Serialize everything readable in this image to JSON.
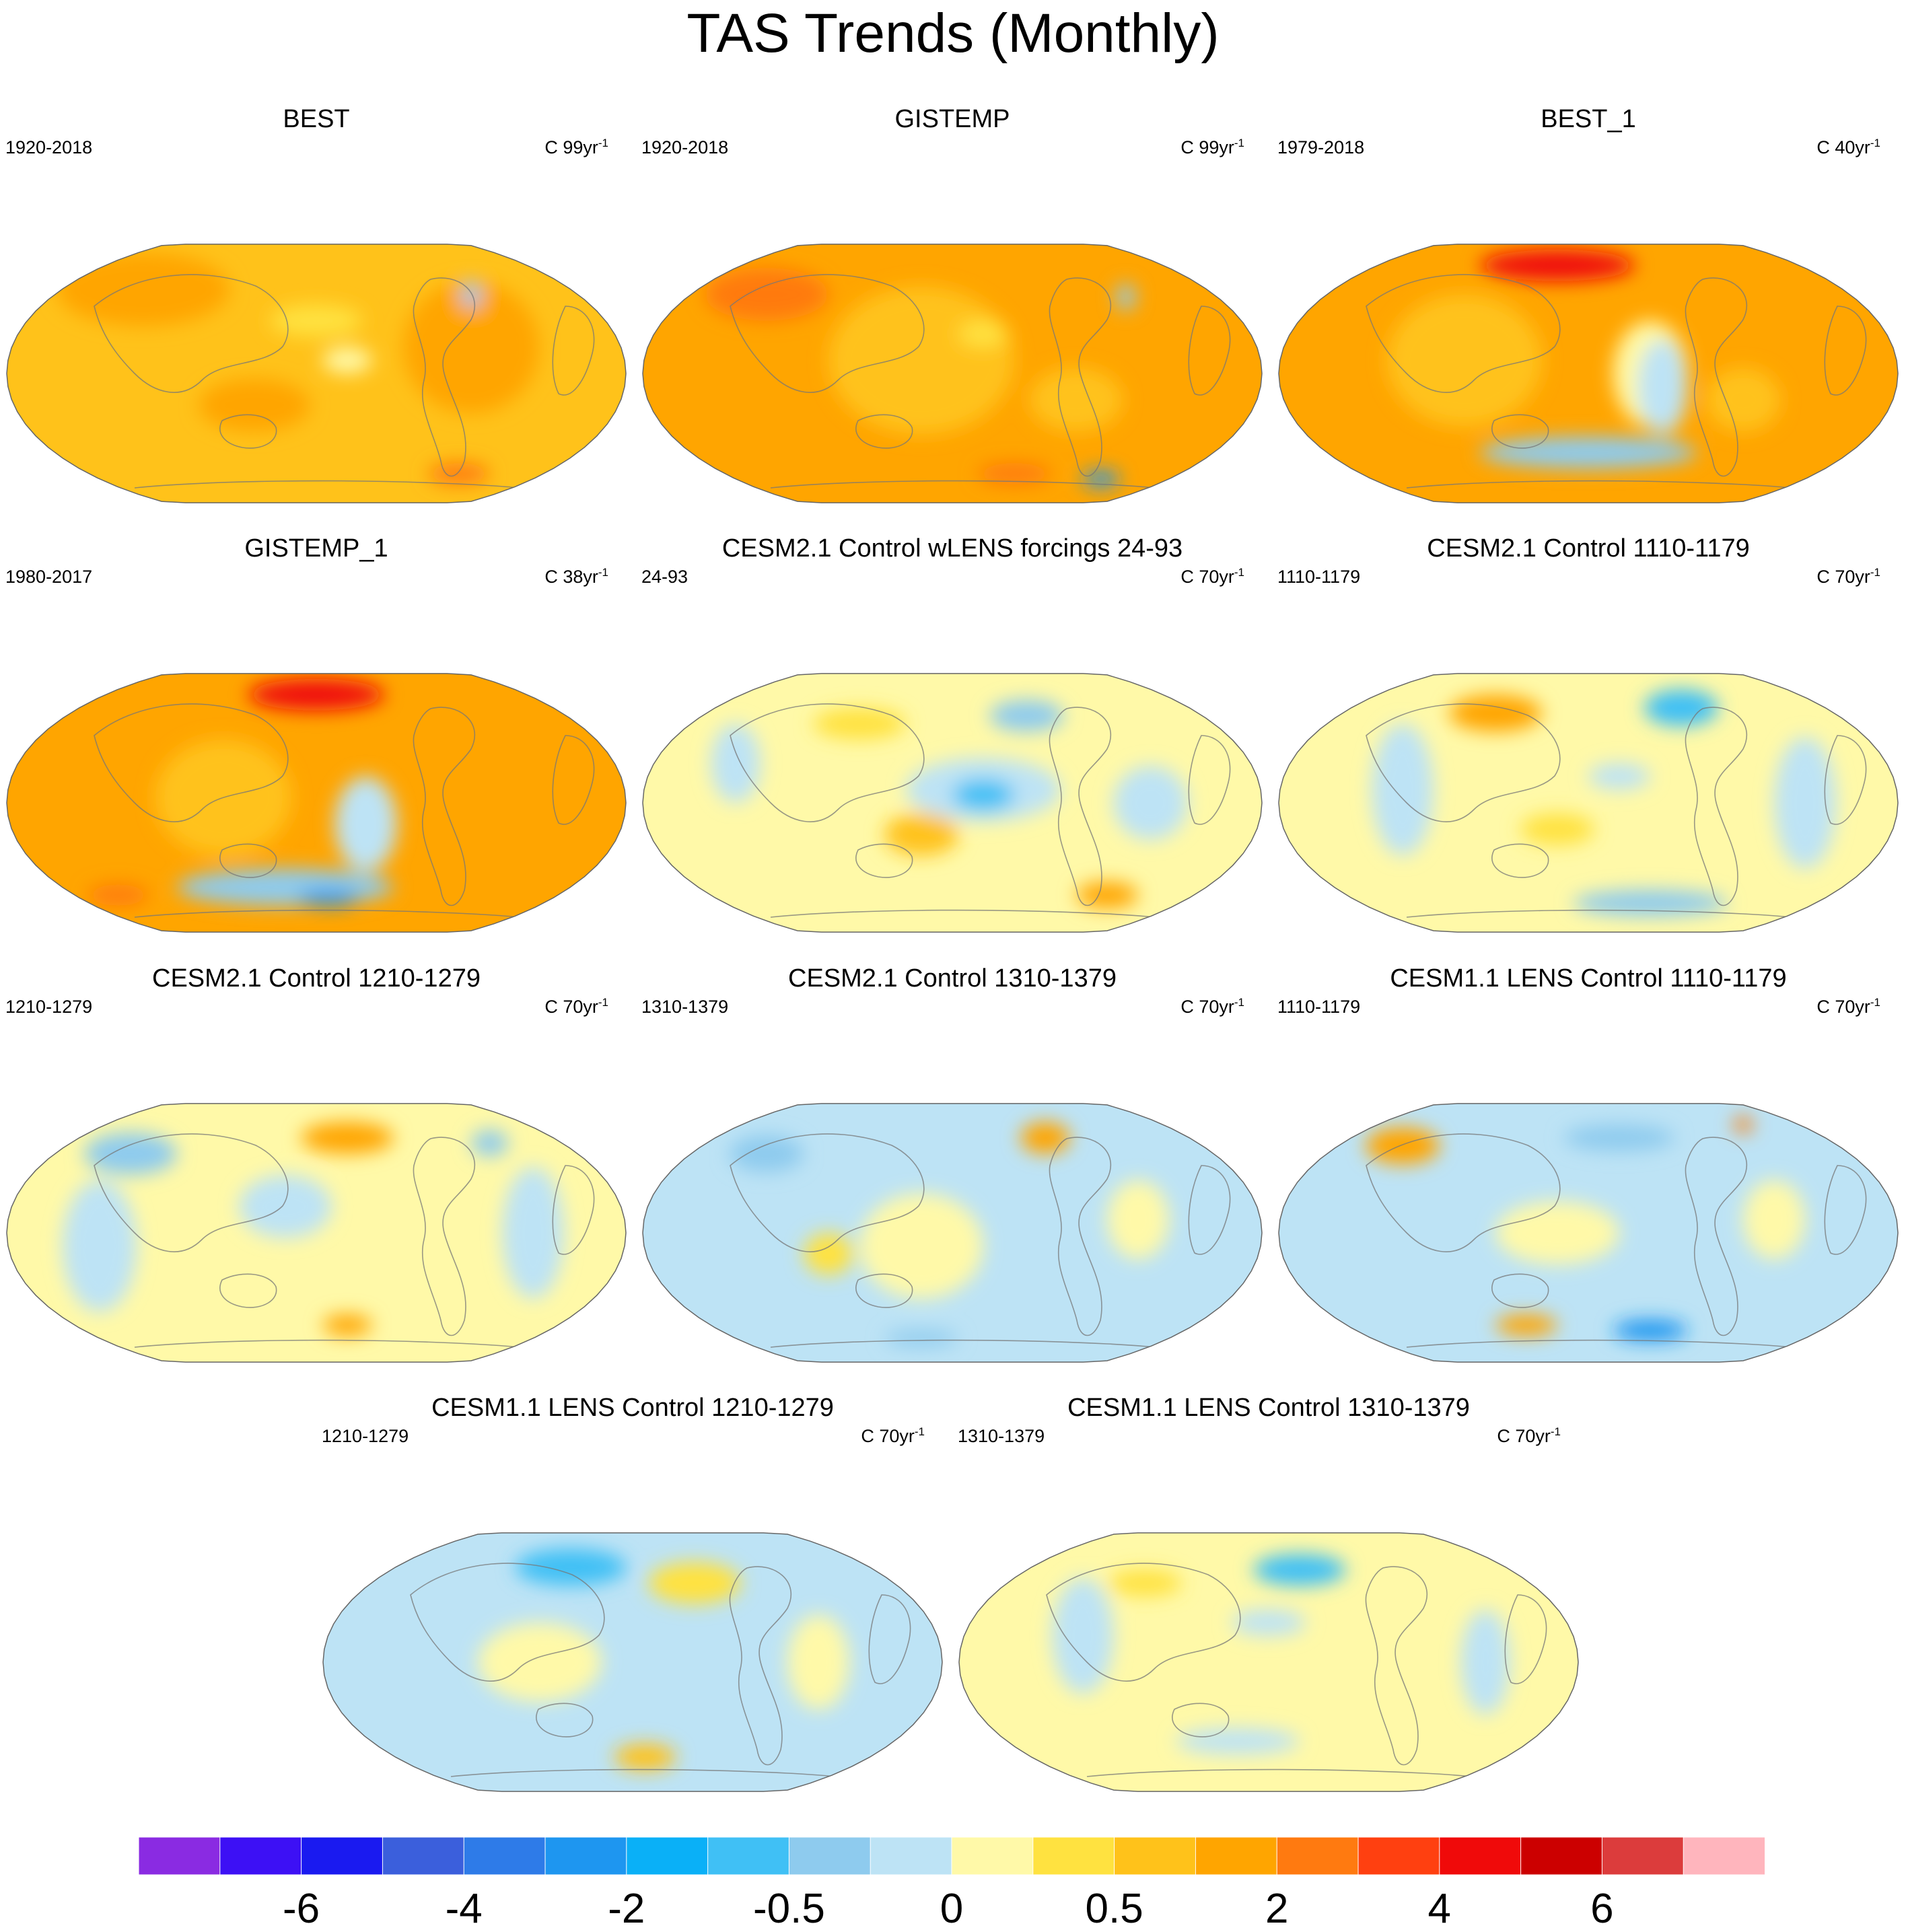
{
  "title": "TAS Trends (Monthly)",
  "palette": [
    "#8a2be2",
    "#3d10f5",
    "#1a1af0",
    "#3b5fdc",
    "#2e7be8",
    "#1e96f0",
    "#0ab0f7",
    "#40c0f5",
    "#8ecbee",
    "#bde3f5",
    "#fff9a8",
    "#ffe240",
    "#ffc21a",
    "#ffa500",
    "#ff7a10",
    "#ff4010",
    "#f00a0a",
    "#cc0000",
    "#dc3c3c",
    "#ffb5bd"
  ],
  "colorbar": {
    "labels": [
      "-6",
      "-4",
      "-2",
      "-0.5",
      "0",
      "0.5",
      "2",
      "4",
      "6"
    ]
  },
  "panels": [
    {
      "title": "BEST",
      "period": "1920-2018",
      "units": "C 99yr",
      "exp": "-1",
      "bg": "#ffc21a",
      "blobs": [
        [
          "#ffa500",
          0.22,
          0.18,
          0.28,
          0.14
        ],
        [
          "#ffa500",
          0.75,
          0.4,
          0.22,
          0.25
        ],
        [
          "#ffa500",
          0.4,
          0.62,
          0.18,
          0.1
        ],
        [
          "#fff9a8",
          0.55,
          0.45,
          0.08,
          0.05
        ],
        [
          "#ff7a10",
          0.73,
          0.88,
          0.1,
          0.04
        ],
        [
          "#8ecbee",
          0.75,
          0.2,
          0.03,
          0.05
        ],
        [
          "#ffe240",
          0.5,
          0.3,
          0.15,
          0.06
        ]
      ]
    },
    {
      "title": "GISTEMP",
      "period": "1920-2018",
      "units": "C 99yr",
      "exp": "-1",
      "bg": "#ffa500",
      "blobs": [
        [
          "#ffc21a",
          0.45,
          0.45,
          0.3,
          0.28
        ],
        [
          "#ffc21a",
          0.7,
          0.6,
          0.15,
          0.12
        ],
        [
          "#ff7a10",
          0.2,
          0.2,
          0.2,
          0.1
        ],
        [
          "#ff7a10",
          0.6,
          0.88,
          0.12,
          0.04
        ],
        [
          "#8ecbee",
          0.78,
          0.21,
          0.03,
          0.05
        ],
        [
          "#1e96f0",
          0.74,
          0.9,
          0.06,
          0.03
        ],
        [
          "#ffe240",
          0.55,
          0.35,
          0.08,
          0.05
        ]
      ]
    },
    {
      "title": "BEST_1",
      "period": "1979-2018",
      "units": "C 40yr",
      "exp": "-1",
      "bg": "#ffa500",
      "blobs": [
        [
          "#f00a0a",
          0.45,
          0.09,
          0.25,
          0.06
        ],
        [
          "#ffc21a",
          0.3,
          0.45,
          0.25,
          0.25
        ],
        [
          "#fff9a8",
          0.6,
          0.5,
          0.12,
          0.2
        ],
        [
          "#bde3f5",
          0.62,
          0.55,
          0.08,
          0.18
        ],
        [
          "#8ecbee",
          0.5,
          0.8,
          0.35,
          0.06
        ],
        [
          "#ffc21a",
          0.75,
          0.6,
          0.12,
          0.12
        ]
      ]
    },
    {
      "title": "GISTEMP_1",
      "period": "1980-2017",
      "units": "C 38yr",
      "exp": "-1",
      "bg": "#ffa500",
      "blobs": [
        [
          "#f00a0a",
          0.5,
          0.09,
          0.22,
          0.06
        ],
        [
          "#ffc21a",
          0.35,
          0.48,
          0.22,
          0.22
        ],
        [
          "#bde3f5",
          0.58,
          0.58,
          0.1,
          0.18
        ],
        [
          "#8ecbee",
          0.45,
          0.82,
          0.35,
          0.07
        ],
        [
          "#ff7a10",
          0.18,
          0.85,
          0.1,
          0.04
        ],
        [
          "#1e96f0",
          0.52,
          0.86,
          0.1,
          0.03
        ]
      ]
    },
    {
      "title": "CESM2.1 Control wLENS forcings 24-93",
      "period": "24-93",
      "units": "C 70yr",
      "exp": "-1",
      "bg": "#fff9a8",
      "blobs": [
        [
          "#bde3f5",
          0.55,
          0.45,
          0.25,
          0.12
        ],
        [
          "#40c0f5",
          0.55,
          0.47,
          0.1,
          0.06
        ],
        [
          "#ffc21a",
          0.45,
          0.62,
          0.12,
          0.08
        ],
        [
          "#ffe240",
          0.35,
          0.2,
          0.15,
          0.06
        ],
        [
          "#8ecbee",
          0.62,
          0.17,
          0.12,
          0.06
        ],
        [
          "#bde3f5",
          0.15,
          0.35,
          0.08,
          0.15
        ],
        [
          "#bde3f5",
          0.82,
          0.5,
          0.12,
          0.14
        ],
        [
          "#ffa500",
          0.75,
          0.85,
          0.1,
          0.05
        ]
      ]
    },
    {
      "title": "CESM2.1 Control 1110-1179",
      "period": "1110-1179",
      "units": "C 70yr",
      "exp": "-1",
      "bg": "#fff9a8",
      "blobs": [
        [
          "#ffa500",
          0.35,
          0.16,
          0.15,
          0.07
        ],
        [
          "#40c0f5",
          0.65,
          0.14,
          0.12,
          0.07
        ],
        [
          "#bde3f5",
          0.2,
          0.45,
          0.1,
          0.25
        ],
        [
          "#bde3f5",
          0.85,
          0.5,
          0.1,
          0.25
        ],
        [
          "#ffe240",
          0.45,
          0.6,
          0.12,
          0.06
        ],
        [
          "#8ecbee",
          0.6,
          0.88,
          0.25,
          0.05
        ],
        [
          "#bde3f5",
          0.55,
          0.4,
          0.1,
          0.05
        ]
      ]
    },
    {
      "title": "CESM2.1 Control 1210-1279",
      "period": "1210-1279",
      "units": "C 70yr",
      "exp": "-1",
      "bg": "#fff9a8",
      "blobs": [
        [
          "#ffa500",
          0.55,
          0.14,
          0.15,
          0.06
        ],
        [
          "#8ecbee",
          0.2,
          0.2,
          0.15,
          0.08
        ],
        [
          "#bde3f5",
          0.15,
          0.55,
          0.12,
          0.25
        ],
        [
          "#bde3f5",
          0.85,
          0.5,
          0.1,
          0.25
        ],
        [
          "#bde3f5",
          0.45,
          0.4,
          0.15,
          0.12
        ],
        [
          "#ffa500",
          0.55,
          0.85,
          0.08,
          0.04
        ],
        [
          "#8ecbee",
          0.78,
          0.16,
          0.06,
          0.05
        ]
      ]
    },
    {
      "title": "CESM2.1 Control 1310-1379",
      "period": "1310-1379",
      "units": "C 70yr",
      "exp": "-1",
      "bg": "#bde3f5",
      "blobs": [
        [
          "#fff9a8",
          0.45,
          0.55,
          0.2,
          0.2
        ],
        [
          "#ffa500",
          0.65,
          0.14,
          0.08,
          0.06
        ],
        [
          "#8ecbee",
          0.2,
          0.2,
          0.12,
          0.07
        ],
        [
          "#fff9a8",
          0.8,
          0.45,
          0.1,
          0.15
        ],
        [
          "#ffe240",
          0.3,
          0.58,
          0.08,
          0.08
        ],
        [
          "#8ecbee",
          0.45,
          0.9,
          0.12,
          0.03
        ]
      ]
    },
    {
      "title": "CESM1.1 LENS Control 1110-1179",
      "period": "1110-1179",
      "units": "C 70yr",
      "exp": "-1",
      "bg": "#bde3f5",
      "blobs": [
        [
          "#ffa500",
          0.2,
          0.17,
          0.12,
          0.07
        ],
        [
          "#8ecbee",
          0.55,
          0.14,
          0.18,
          0.05
        ],
        [
          "#fff9a8",
          0.45,
          0.5,
          0.2,
          0.12
        ],
        [
          "#fff9a8",
          0.8,
          0.45,
          0.1,
          0.15
        ],
        [
          "#ffa500",
          0.4,
          0.85,
          0.1,
          0.04
        ],
        [
          "#1e96f0",
          0.6,
          0.87,
          0.12,
          0.04
        ],
        [
          "#ff7a10",
          0.75,
          0.09,
          0.03,
          0.03
        ]
      ]
    },
    {
      "title": "CESM1.1 LENS Control 1210-1279",
      "period": "1210-1279",
      "units": "C 70yr",
      "exp": "-1",
      "bg": "#bde3f5",
      "blobs": [
        [
          "#40c0f5",
          0.4,
          0.14,
          0.18,
          0.07
        ],
        [
          "#fff9a8",
          0.35,
          0.5,
          0.2,
          0.15
        ],
        [
          "#ffe240",
          0.6,
          0.2,
          0.15,
          0.08
        ],
        [
          "#fff9a8",
          0.8,
          0.5,
          0.1,
          0.18
        ],
        [
          "#ffc21a",
          0.52,
          0.86,
          0.1,
          0.05
        ]
      ]
    },
    {
      "title": "CESM1.1 LENS Control 1310-1379",
      "period": "1310-1379",
      "units": "C 70yr",
      "exp": "-1",
      "bg": "#fff9a8",
      "blobs": [
        [
          "#40c0f5",
          0.55,
          0.15,
          0.15,
          0.06
        ],
        [
          "#bde3f5",
          0.2,
          0.4,
          0.1,
          0.22
        ],
        [
          "#bde3f5",
          0.5,
          0.35,
          0.12,
          0.05
        ],
        [
          "#ffe240",
          0.3,
          0.2,
          0.12,
          0.05
        ],
        [
          "#bde3f5",
          0.45,
          0.8,
          0.2,
          0.05
        ],
        [
          "#bde3f5",
          0.85,
          0.5,
          0.08,
          0.2
        ]
      ]
    }
  ]
}
